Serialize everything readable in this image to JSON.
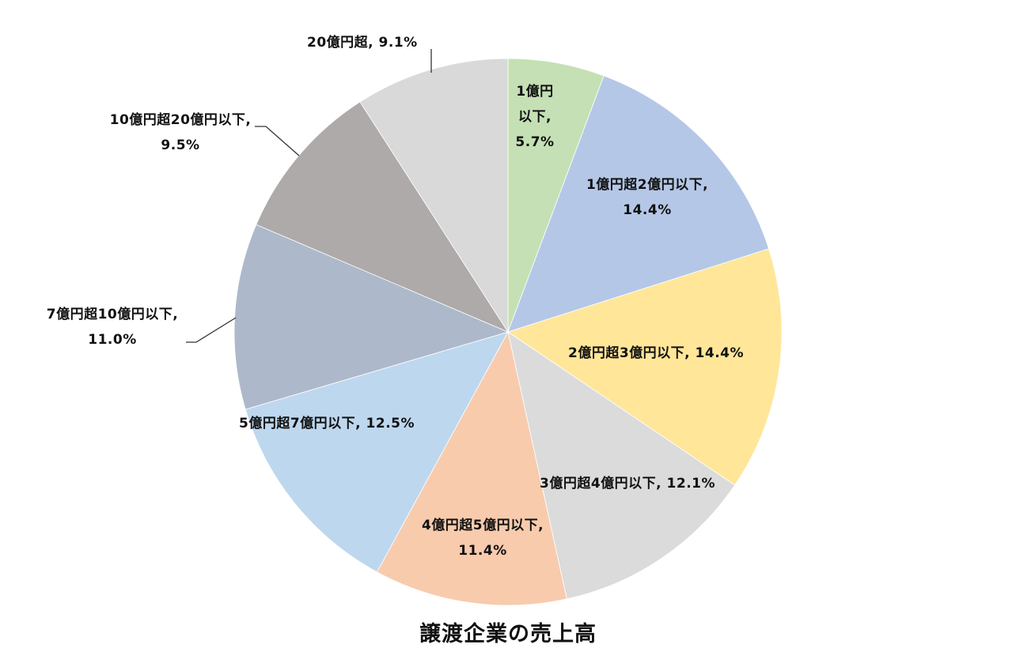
{
  "chart_data": {
    "type": "pie",
    "title": "譲渡企業の売上高",
    "start_angle_deg": 0,
    "direction": "clockwise",
    "center": [
      642,
      420
    ],
    "radius": 346,
    "slices": [
      {
        "label": "1億円以下",
        "value": 5.7,
        "display": "5.7%",
        "color": "#c5e0b4"
      },
      {
        "label": "1億円超2億円以下",
        "value": 14.4,
        "display": "14.4%",
        "color": "#b4c7e7"
      },
      {
        "label": "2億円超3億円以下",
        "value": 14.4,
        "display": "14.4%",
        "color": "#ffe699"
      },
      {
        "label": "3億円超4億円以下",
        "value": 12.1,
        "display": "12.1%",
        "color": "#dbdbdb"
      },
      {
        "label": "4億円超5億円以下",
        "value": 11.4,
        "display": "11.4%",
        "color": "#f8cbad"
      },
      {
        "label": "5億円超7億円以下",
        "value": 12.5,
        "display": "12.5%",
        "color": "#bdd7ee"
      },
      {
        "label": "7億円超10億円以下",
        "value": 11.0,
        "display": "11.0%",
        "color": "#adb9ca"
      },
      {
        "label": "10億円超20億円以下",
        "value": 9.5,
        "display": "9.5%",
        "color": "#aeaaaa"
      },
      {
        "label": "20億円超",
        "value": 9.1,
        "display": "9.1%",
        "color": "#d9d9d9"
      }
    ],
    "legend": "none",
    "data_labels": "category name, percentage"
  },
  "labels": {
    "s0": {
      "line1": "1億円",
      "line2": "以下,",
      "line3": "5.7%"
    },
    "s1": {
      "line1": "1億円超2億円以下,",
      "line2": "14.4%"
    },
    "s2": {
      "line1": "2億円超3億円以下, 14.4%"
    },
    "s3": {
      "line1": "3億円超4億円以下, 12.1%"
    },
    "s4": {
      "line1": "4億円超5億円以下,",
      "line2": "11.4%"
    },
    "s5": {
      "line1": "5億円超7億円以下, 12.5%"
    },
    "s6": {
      "line1": "7億円超10億円以下,",
      "line2": "11.0%"
    },
    "s7": {
      "line1": "10億円超20億円以下,",
      "line2": "9.5%"
    },
    "s8": {
      "line1": "20億円超, 9.1%"
    }
  }
}
